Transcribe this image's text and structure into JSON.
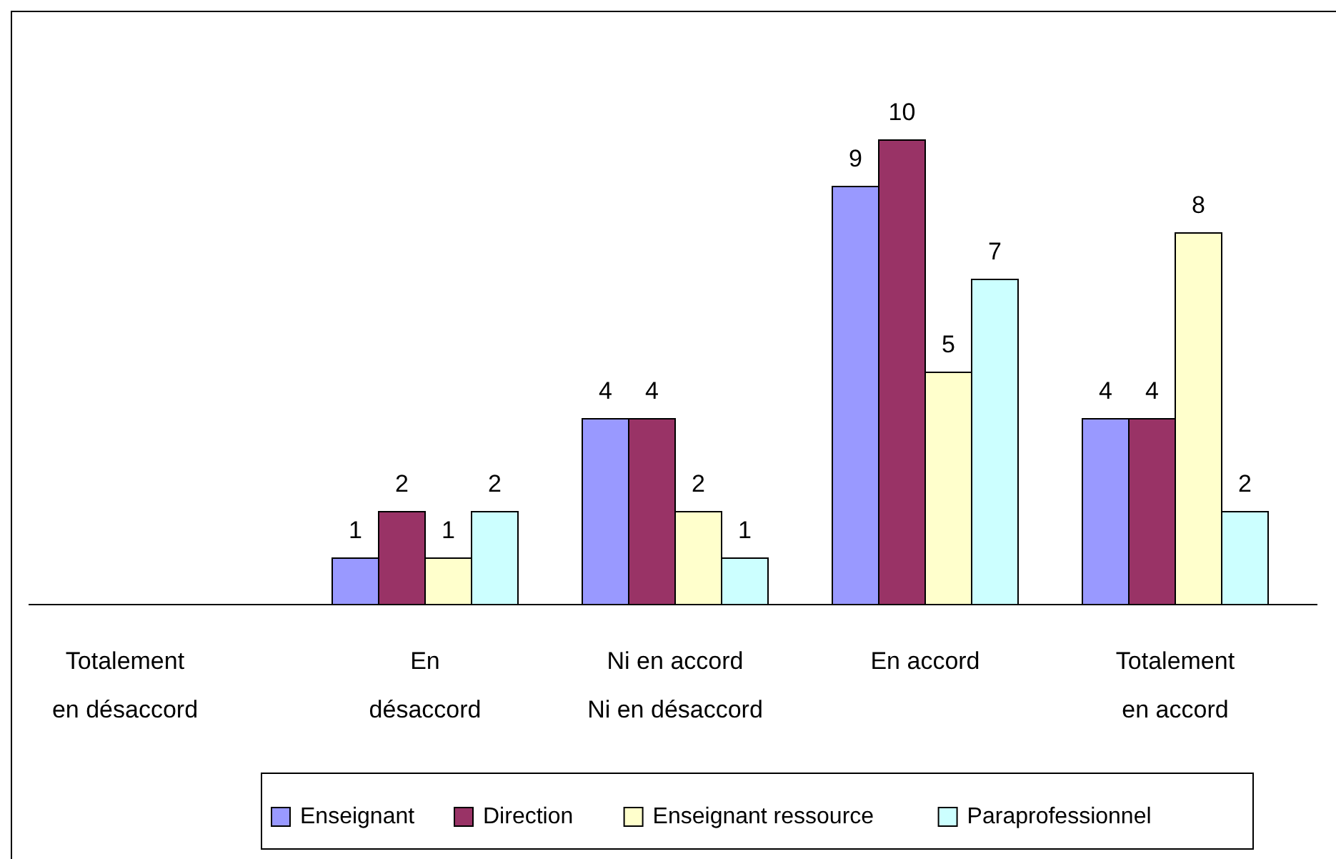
{
  "chart_data": {
    "type": "bar",
    "categories": [
      "Totalement\nen désaccord",
      "En\ndésaccord",
      "Ni en accord\nNi en désaccord",
      "En accord",
      "Totalement\nen accord"
    ],
    "series": [
      {
        "name": "Enseignant",
        "color": "#9999ff",
        "values": [
          null,
          1,
          4,
          9,
          4
        ]
      },
      {
        "name": "Direction",
        "color": "#993366",
        "values": [
          null,
          2,
          4,
          10,
          4
        ]
      },
      {
        "name": "Enseignant ressource",
        "color": "#ffffcc",
        "values": [
          null,
          1,
          2,
          5,
          8
        ]
      },
      {
        "name": "Paraprofessionnel",
        "color": "#ccffff",
        "values": [
          null,
          2,
          1,
          7,
          2
        ]
      }
    ],
    "data_labels": true,
    "legend": "bottom"
  }
}
